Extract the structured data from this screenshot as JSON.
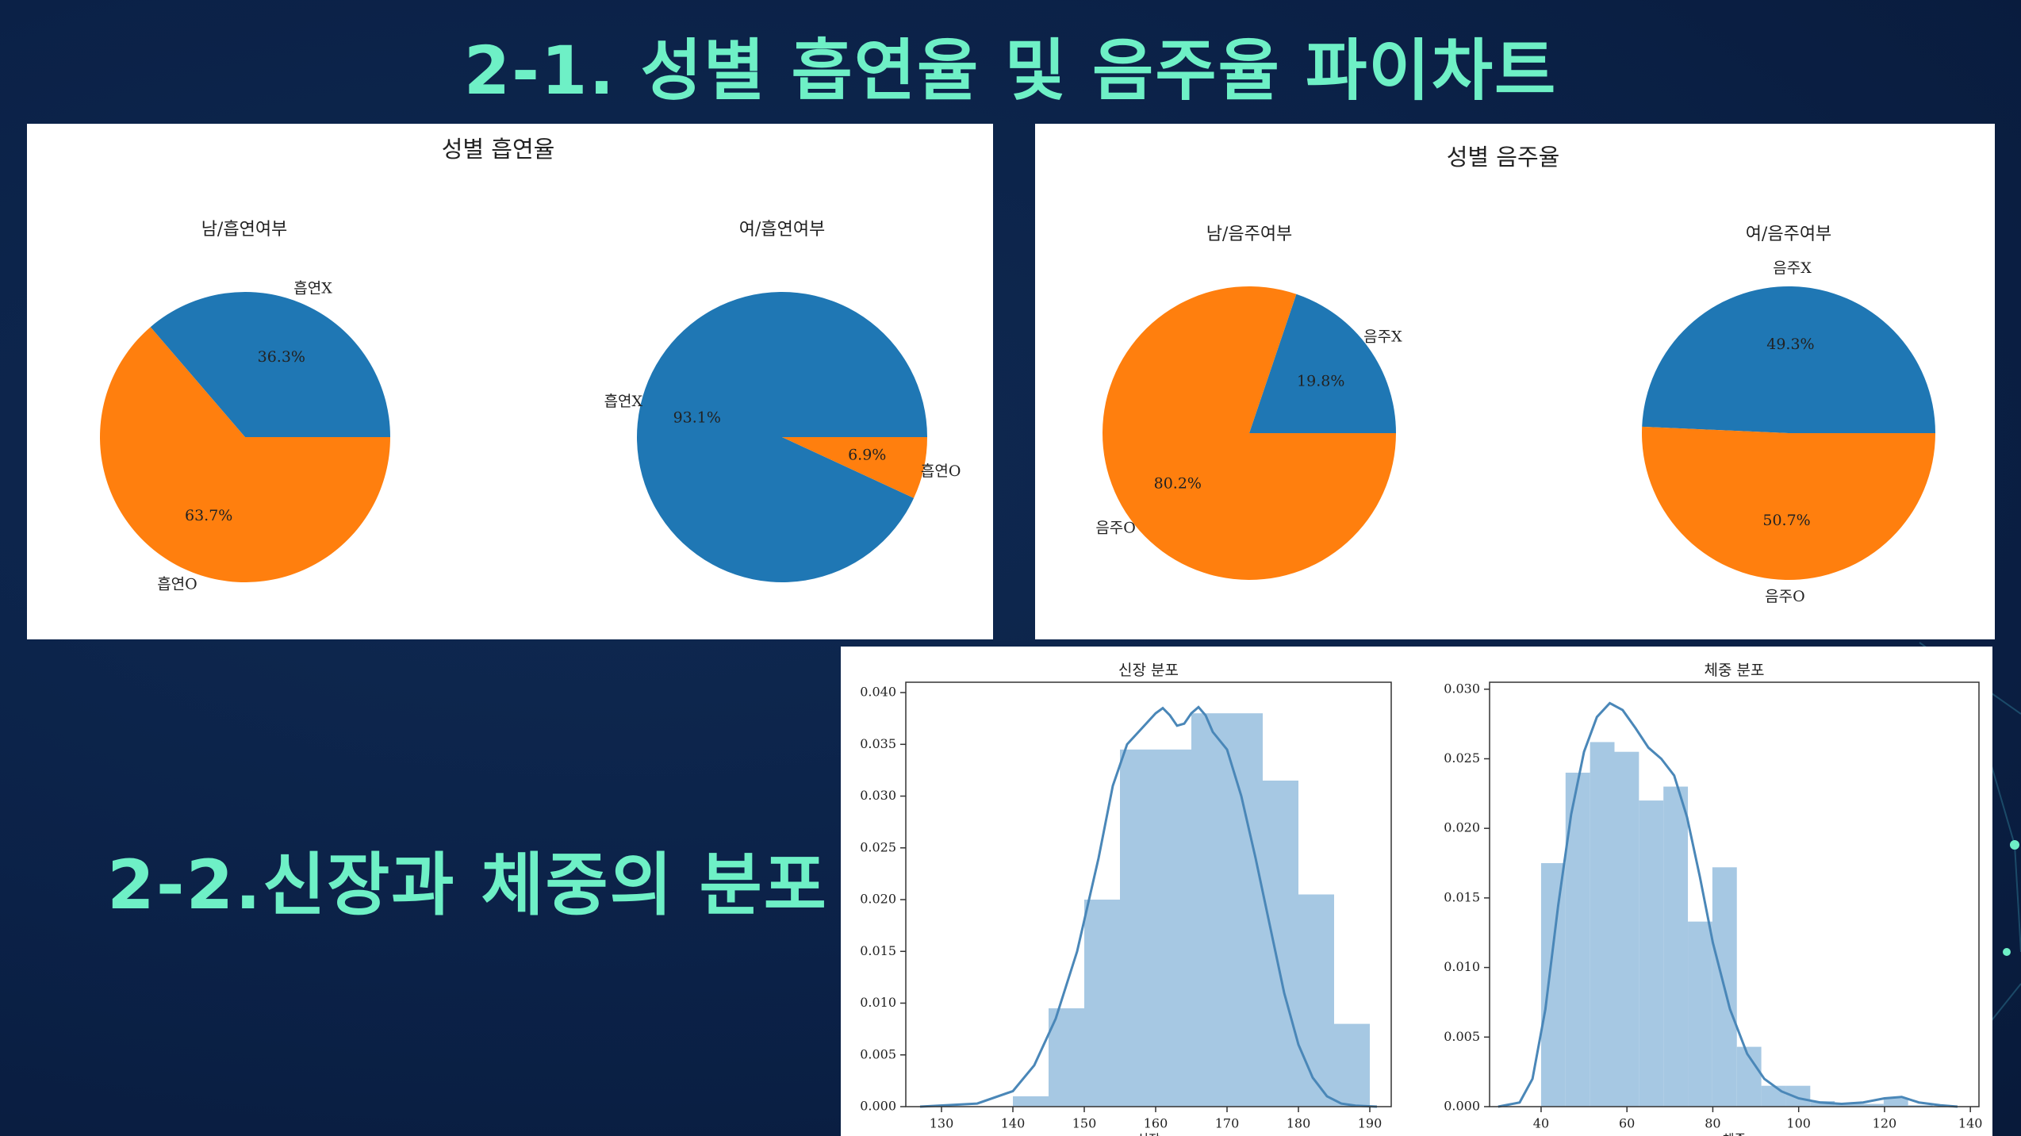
{
  "slide": {
    "title": "2-1. 성별 흡연율 및 음주율 파이차트",
    "section2_title": "2-2.신장과 체중의 분포"
  },
  "colors": {
    "blue": "#1f77b4",
    "orange": "#ff7f0e",
    "hist": "#a6c8e3",
    "kde": "#4a87b8",
    "accent": "#6ef0c6"
  },
  "chart_data": [
    {
      "type": "pie",
      "title": "성별 흡연율",
      "subplots": [
        {
          "title": "남/흡연여부",
          "labels": [
            "흡연X",
            "흡연O"
          ],
          "values": [
            36.3,
            63.7
          ],
          "pct_labels": [
            "36.3%",
            "63.7%"
          ]
        },
        {
          "title": "여/흡연여부",
          "labels": [
            "흡연X",
            "흡연O"
          ],
          "values": [
            93.1,
            6.9
          ],
          "pct_labels": [
            "93.1%",
            "6.9%"
          ]
        }
      ]
    },
    {
      "type": "pie",
      "title": "성별 음주율",
      "subplots": [
        {
          "title": "남/음주여부",
          "labels": [
            "음주X",
            "음주O"
          ],
          "values": [
            19.8,
            80.2
          ],
          "pct_labels": [
            "19.8%",
            "80.2%"
          ]
        },
        {
          "title": "여/음주여부",
          "labels": [
            "음주X",
            "음주O"
          ],
          "values": [
            49.3,
            50.7
          ],
          "pct_labels": [
            "49.3%",
            "50.7%"
          ]
        }
      ]
    },
    {
      "type": "bar",
      "title": "신장 분포",
      "xlabel": "신장",
      "xlim": [
        125,
        193
      ],
      "ylim": [
        0,
        0.041
      ],
      "xticks": [
        130,
        140,
        150,
        160,
        170,
        180,
        190
      ],
      "xtick_labels": [
        "130",
        "140",
        "150",
        "160",
        "170",
        "180",
        "190"
      ],
      "yticks": [
        0,
        0.005,
        0.01,
        0.015,
        0.02,
        0.025,
        0.03,
        0.035,
        0.04
      ],
      "ytick_labels": [
        "0.000",
        "0.005",
        "0.010",
        "0.015",
        "0.020",
        "0.025",
        "0.030",
        "0.035",
        "0.040"
      ],
      "bins": [
        140,
        145,
        150,
        155,
        160,
        165,
        170,
        175,
        180,
        185
      ],
      "values": [
        0.001,
        0.0095,
        0.02,
        0.0345,
        0.0345,
        0.038,
        0.038,
        0.0315,
        0.0205,
        0.008
      ],
      "kde": {
        "x": [
          127,
          135,
          140,
          143,
          146,
          149,
          152,
          154,
          156,
          158,
          160,
          161,
          162,
          163,
          164,
          165,
          166,
          167,
          168,
          170,
          172,
          174,
          176,
          178,
          180,
          182,
          184,
          186,
          188,
          191
        ],
        "y": [
          0,
          0.0003,
          0.0015,
          0.004,
          0.0085,
          0.015,
          0.024,
          0.031,
          0.035,
          0.0365,
          0.038,
          0.0385,
          0.0378,
          0.0368,
          0.037,
          0.038,
          0.0386,
          0.0378,
          0.0362,
          0.0345,
          0.03,
          0.024,
          0.0175,
          0.011,
          0.006,
          0.0028,
          0.001,
          0.0003,
          0.0001,
          0
        ]
      }
    },
    {
      "type": "bar",
      "title": "체중 분포",
      "xlabel": "체중",
      "xlim": [
        28,
        142
      ],
      "ylim": [
        0,
        0.0305
      ],
      "xticks": [
        40,
        60,
        80,
        100,
        120,
        140
      ],
      "xtick_labels": [
        "40",
        "60",
        "80",
        "100",
        "120",
        "140"
      ],
      "yticks": [
        0,
        0.005,
        0.01,
        0.015,
        0.02,
        0.025,
        0.03
      ],
      "ytick_labels": [
        "0.000",
        "0.005",
        "0.010",
        "0.015",
        "0.020",
        "0.025",
        "0.030"
      ],
      "bins": [
        40,
        45.7,
        51.4,
        57.1,
        62.8,
        68.5,
        74.2,
        79.9,
        85.6,
        91.3,
        97,
        102.7,
        108.4,
        114.1,
        119.8,
        125.5
      ],
      "values": [
        0.0175,
        0.024,
        0.0262,
        0.0255,
        0.022,
        0.023,
        0.0133,
        0.0172,
        0.0043,
        0.0015,
        0.0015,
        0.0004,
        0.0002,
        0.0002,
        0.0006,
        0.0001
      ],
      "kde": {
        "x": [
          30,
          35,
          38,
          41,
          44,
          47,
          50,
          53,
          56,
          59,
          62,
          65,
          68,
          71,
          74,
          77,
          80,
          84,
          88,
          92,
          96,
          100,
          105,
          110,
          115,
          120,
          124,
          128,
          133,
          137
        ],
        "y": [
          0,
          0.0003,
          0.002,
          0.007,
          0.0145,
          0.021,
          0.0255,
          0.028,
          0.029,
          0.0285,
          0.0272,
          0.0258,
          0.025,
          0.0238,
          0.0208,
          0.0165,
          0.0118,
          0.007,
          0.0038,
          0.002,
          0.0011,
          0.0006,
          0.0003,
          0.0002,
          0.0003,
          0.0006,
          0.0007,
          0.0003,
          0.0001,
          0
        ]
      }
    }
  ]
}
